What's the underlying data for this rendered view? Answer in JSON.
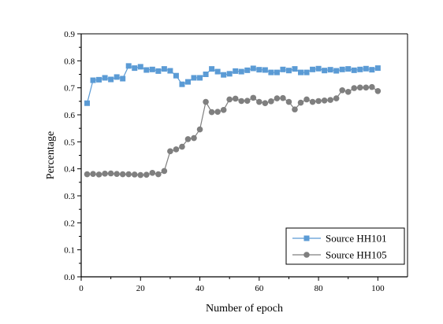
{
  "chart_data": {
    "type": "line",
    "xlabel": "Number of epoch",
    "ylabel": "Percentage",
    "xlim": [
      0,
      110
    ],
    "ylim": [
      0.0,
      0.9
    ],
    "xticks": [
      0,
      20,
      40,
      60,
      80,
      100
    ],
    "yticks": [
      0.0,
      0.1,
      0.2,
      0.3,
      0.4,
      0.5,
      0.6,
      0.7,
      0.8,
      0.9
    ],
    "xtick_labels": [
      "0",
      "20",
      "40",
      "60",
      "80",
      "100"
    ],
    "ytick_labels": [
      "0.0",
      "0.1",
      "0.2",
      "0.3",
      "0.4",
      "0.5",
      "0.6",
      "0.7",
      "0.8",
      "0.9"
    ],
    "grid": false,
    "legend_position": "bottom-right",
    "x": [
      2,
      4,
      6,
      8,
      10,
      12,
      14,
      16,
      18,
      20,
      22,
      24,
      26,
      28,
      30,
      32,
      34,
      36,
      38,
      40,
      42,
      44,
      46,
      48,
      50,
      52,
      54,
      56,
      58,
      60,
      62,
      64,
      66,
      68,
      70,
      72,
      74,
      76,
      78,
      80,
      82,
      84,
      86,
      88,
      90,
      92,
      94,
      96,
      98,
      100
    ],
    "series": [
      {
        "name": "Source HH101",
        "color": "#5b9bd5",
        "marker": "square",
        "values": [
          0.643,
          0.728,
          0.73,
          0.737,
          0.731,
          0.74,
          0.734,
          0.781,
          0.773,
          0.778,
          0.766,
          0.768,
          0.762,
          0.77,
          0.763,
          0.745,
          0.713,
          0.722,
          0.737,
          0.737,
          0.75,
          0.77,
          0.76,
          0.748,
          0.752,
          0.762,
          0.76,
          0.765,
          0.772,
          0.767,
          0.766,
          0.757,
          0.757,
          0.768,
          0.764,
          0.77,
          0.757,
          0.757,
          0.768,
          0.771,
          0.764,
          0.767,
          0.763,
          0.768,
          0.77,
          0.765,
          0.768,
          0.771,
          0.767,
          0.773
        ]
      },
      {
        "name": "Source HH105",
        "color": "#7f7f7f",
        "marker": "circle",
        "values": [
          0.38,
          0.381,
          0.379,
          0.382,
          0.383,
          0.381,
          0.38,
          0.38,
          0.379,
          0.377,
          0.378,
          0.385,
          0.38,
          0.392,
          0.465,
          0.472,
          0.482,
          0.51,
          0.514,
          0.546,
          0.648,
          0.61,
          0.611,
          0.618,
          0.657,
          0.66,
          0.651,
          0.652,
          0.663,
          0.648,
          0.643,
          0.65,
          0.661,
          0.662,
          0.648,
          0.62,
          0.645,
          0.657,
          0.648,
          0.651,
          0.653,
          0.655,
          0.661,
          0.691,
          0.685,
          0.699,
          0.701,
          0.701,
          0.703,
          0.688
        ]
      }
    ]
  }
}
